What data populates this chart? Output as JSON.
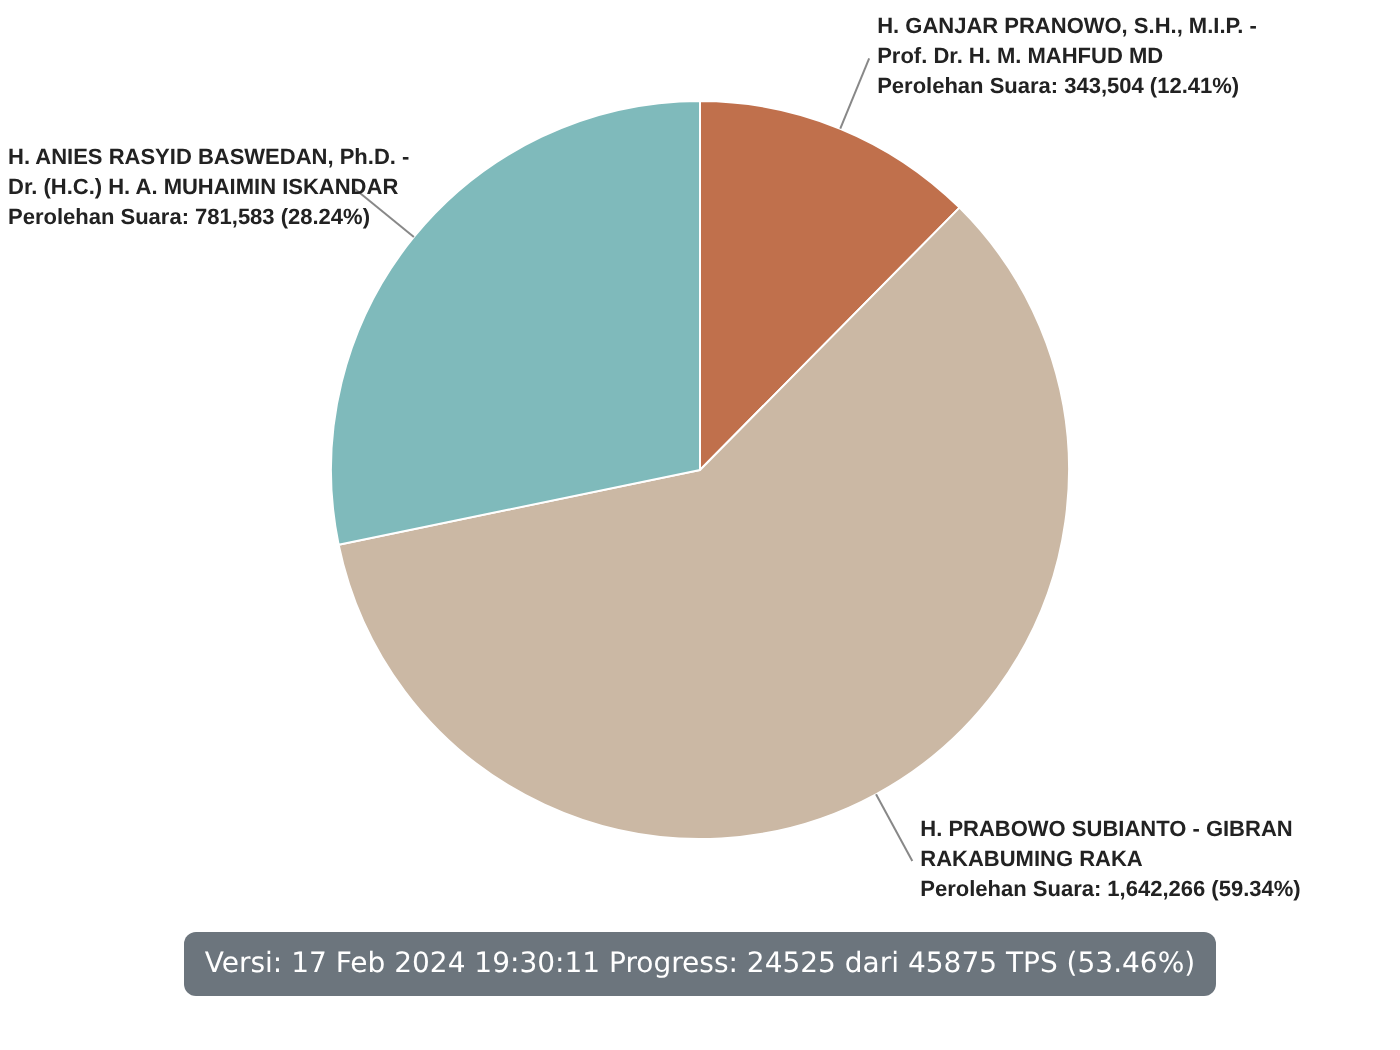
{
  "chart_data": {
    "type": "pie",
    "categories": [
      "H. GANJAR PRANOWO, S.H., M.I.P. - Prof. Dr. H. M. MAHFUD MD",
      "H. PRABOWO SUBIANTO - GIBRAN RAKABUMING RAKA",
      "H. ANIES RASYID BASWEDAN, Ph.D. - Dr. (H.C.) H. A. MUHAIMIN ISKANDAR"
    ],
    "values": [
      343504,
      1642266,
      781583
    ],
    "colors": [
      "#c0704c",
      "#cbb8a4",
      "#7fbabb"
    ],
    "value_labels": [
      "Perolehan Suara: 343,504 (12.41%)",
      "Perolehan Suara: 1,642,266 (59.34%)",
      "Perolehan Suara: 781,583 (28.24%)"
    ],
    "annotations": [
      "Versi: 17 Feb 2024 19:30:11 Progress: 24525 dari 45875 TPS (53.46%)"
    ]
  }
}
